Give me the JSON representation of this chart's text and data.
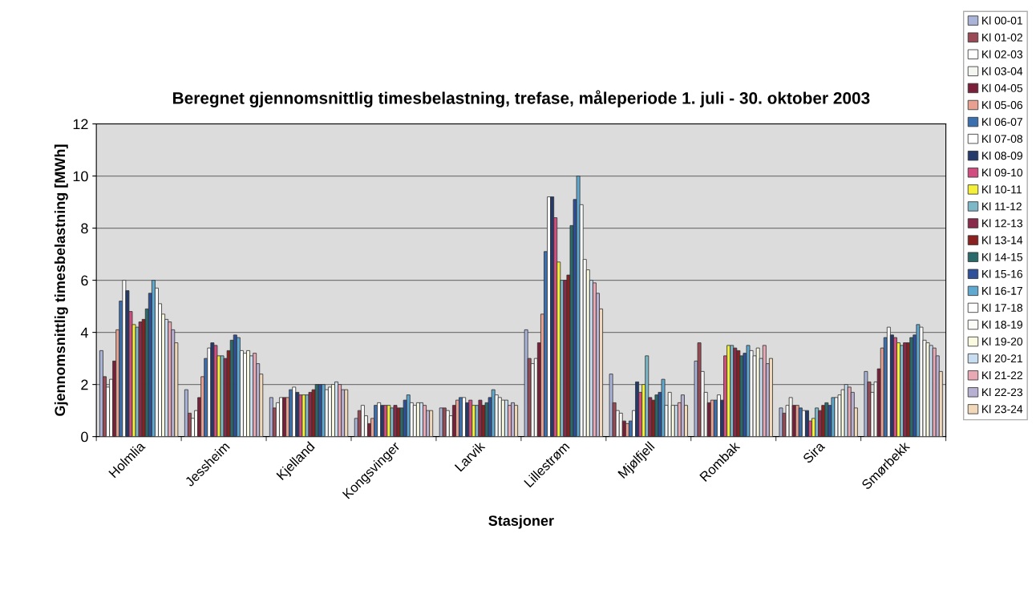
{
  "chart_data": {
    "type": "bar",
    "title": "Beregnet gjennomsnittlig timesbelastning, trefase, måleperiode 1. juli - 30. oktober 2003",
    "xlabel": "Stasjoner",
    "ylabel": "Gjennomsnittlig timesbelastning [MWh]",
    "categories": [
      "Holmlia",
      "Jessheim",
      "Kjelland",
      "Kongsvinger",
      "Larvik",
      "Lillestrøm",
      "Mjølfjell",
      "Rombak",
      "Sira",
      "Smørbekk"
    ],
    "ylim": [
      0,
      12
    ],
    "yticks": [
      0,
      2,
      4,
      6,
      8,
      10,
      12
    ],
    "grid": "y",
    "legend": "right",
    "series": [
      {
        "name": "Kl 00-01",
        "color": "#a9b4d8",
        "values": [
          3.3,
          1.8,
          1.5,
          0.7,
          1.1,
          4.1,
          2.4,
          2.9,
          1.1,
          2.5
        ]
      },
      {
        "name": "Kl 01-02",
        "color": "#9a4a55",
        "values": [
          2.3,
          0.9,
          1.1,
          1.0,
          1.1,
          3.0,
          1.3,
          3.6,
          0.9,
          2.1
        ]
      },
      {
        "name": "Kl 02-03",
        "color": "#ffffff",
        "values": [
          1.9,
          0.7,
          1.3,
          1.2,
          1.0,
          2.8,
          1.0,
          2.5,
          1.2,
          1.7
        ]
      },
      {
        "name": "Kl 03-04",
        "color": "#f4f6f2",
        "values": [
          2.2,
          1.0,
          1.5,
          0.8,
          0.8,
          3.0,
          0.9,
          1.7,
          1.5,
          2.1
        ]
      },
      {
        "name": "Kl 04-05",
        "color": "#7a1f3a",
        "values": [
          2.9,
          1.5,
          1.5,
          0.5,
          1.2,
          3.6,
          0.6,
          1.3,
          1.2,
          2.6
        ]
      },
      {
        "name": "Kl 05-06",
        "color": "#e8a090",
        "values": [
          4.1,
          2.3,
          1.5,
          0.7,
          1.4,
          4.7,
          0.5,
          1.4,
          1.2,
          3.4
        ]
      },
      {
        "name": "Kl 06-07",
        "color": "#3a6fb0",
        "values": [
          5.2,
          3.0,
          1.8,
          1.2,
          1.5,
          7.1,
          0.6,
          1.4,
          1.1,
          3.8
        ]
      },
      {
        "name": "Kl 07-08",
        "color": "#ffffff",
        "values": [
          6.0,
          3.4,
          1.9,
          1.3,
          1.5,
          9.2,
          1.0,
          1.6,
          1.0,
          4.2
        ]
      },
      {
        "name": "Kl 08-09",
        "color": "#243a6a",
        "values": [
          5.6,
          3.6,
          1.7,
          1.2,
          1.3,
          9.2,
          2.1,
          1.4,
          1.0,
          3.9
        ]
      },
      {
        "name": "Kl 09-10",
        "color": "#d24d7f",
        "values": [
          4.8,
          3.5,
          1.6,
          1.2,
          1.4,
          8.4,
          1.7,
          3.1,
          0.6,
          3.8
        ]
      },
      {
        "name": "Kl 10-11",
        "color": "#f4f03a",
        "values": [
          4.3,
          3.1,
          1.6,
          1.2,
          1.2,
          6.7,
          2.0,
          3.5,
          0.7,
          3.6
        ]
      },
      {
        "name": "Kl 11-12",
        "color": "#7cb8c8",
        "values": [
          4.2,
          3.1,
          1.6,
          1.1,
          1.2,
          6.0,
          3.1,
          3.5,
          1.1,
          3.5
        ]
      },
      {
        "name": "Kl 12-13",
        "color": "#8a2a4a",
        "values": [
          4.4,
          3.0,
          1.7,
          1.2,
          1.4,
          6.0,
          1.5,
          3.4,
          1.0,
          3.6
        ]
      },
      {
        "name": "Kl 13-14",
        "color": "#8a2020",
        "values": [
          4.5,
          3.3,
          1.8,
          1.1,
          1.2,
          6.2,
          1.4,
          3.3,
          1.2,
          3.6
        ]
      },
      {
        "name": "Kl 14-15",
        "color": "#2a6a6a",
        "values": [
          4.9,
          3.7,
          2.0,
          1.1,
          1.3,
          8.1,
          1.6,
          3.1,
          1.3,
          3.8
        ]
      },
      {
        "name": "Kl 15-16",
        "color": "#2e4f9a",
        "values": [
          5.5,
          3.9,
          2.0,
          1.4,
          1.5,
          9.1,
          1.7,
          3.2,
          1.2,
          3.9
        ]
      },
      {
        "name": "Kl 16-17",
        "color": "#5fa8d0",
        "values": [
          6.0,
          3.8,
          2.0,
          1.6,
          1.8,
          10.0,
          2.2,
          3.5,
          1.5,
          4.3
        ]
      },
      {
        "name": "Kl 17-18",
        "color": "#ffffff",
        "values": [
          5.7,
          3.3,
          1.8,
          1.3,
          1.6,
          8.9,
          1.2,
          3.3,
          1.5,
          4.2
        ]
      },
      {
        "name": "Kl 18-19",
        "color": "#fbfbf8",
        "values": [
          5.1,
          3.2,
          1.9,
          1.2,
          1.5,
          6.8,
          1.7,
          3.1,
          1.6,
          3.7
        ]
      },
      {
        "name": "Kl 19-20",
        "color": "#fafae0",
        "values": [
          4.7,
          3.3,
          2.0,
          1.3,
          1.4,
          6.4,
          1.2,
          3.4,
          1.8,
          3.6
        ]
      },
      {
        "name": "Kl 20-21",
        "color": "#c8ddf0",
        "values": [
          4.5,
          3.1,
          2.1,
          1.3,
          1.4,
          6.0,
          1.2,
          3.0,
          2.0,
          3.5
        ]
      },
      {
        "name": "Kl 21-22",
        "color": "#e8a8b4",
        "values": [
          4.4,
          3.2,
          2.0,
          1.2,
          1.2,
          5.9,
          1.3,
          3.5,
          1.9,
          3.4
        ]
      },
      {
        "name": "Kl 22-23",
        "color": "#b8b0d0",
        "values": [
          4.1,
          2.8,
          1.8,
          1.0,
          1.3,
          5.5,
          1.6,
          2.8,
          1.7,
          3.1
        ]
      },
      {
        "name": "Kl 23-24",
        "color": "#f0d8b8",
        "values": [
          3.6,
          2.4,
          1.8,
          1.0,
          1.2,
          4.9,
          1.2,
          3.0,
          1.1,
          2.5
        ]
      }
    ]
  }
}
